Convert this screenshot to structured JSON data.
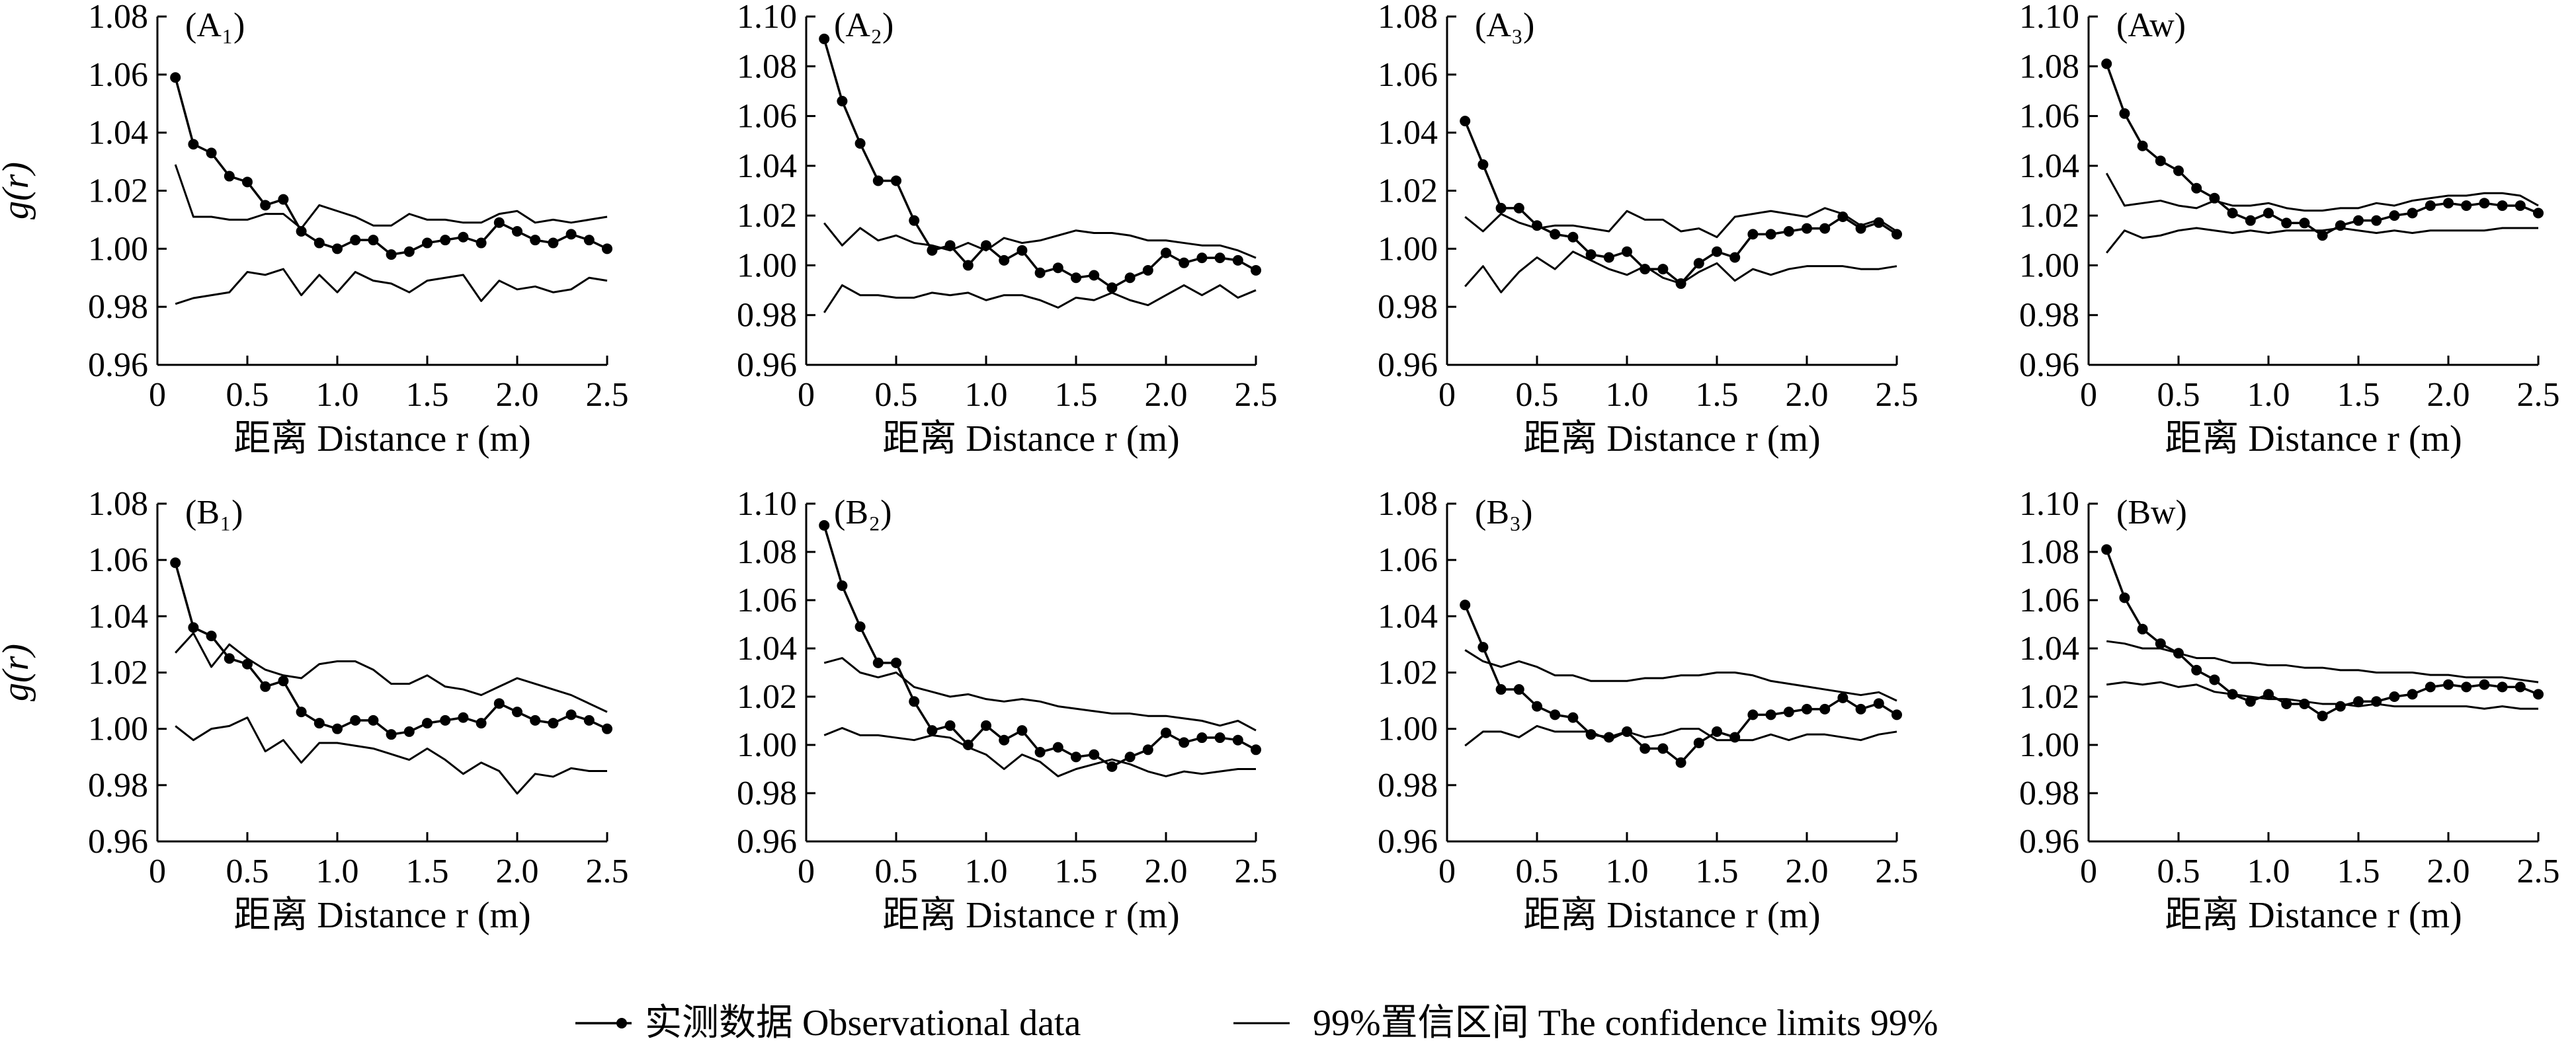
{
  "xlabel": "距离 Distance r (m)",
  "ylabel": "g(r)",
  "legend": {
    "observed": "实测数据 Observational data",
    "confidence": "99%置信区间 The confidence limits 99%"
  },
  "colors": {
    "line": "#000000",
    "background": "#ffffff"
  },
  "chart_data": [
    {
      "type": "line",
      "panel": "A1",
      "label": "(A₁)",
      "x": [
        0.1,
        0.2,
        0.3,
        0.4,
        0.5,
        0.6,
        0.7,
        0.8,
        0.9,
        1.0,
        1.1,
        1.2,
        1.3,
        1.4,
        1.5,
        1.6,
        1.7,
        1.8,
        1.9,
        2.0,
        2.1,
        2.2,
        2.3,
        2.4,
        2.5
      ],
      "xlim": [
        0,
        2.5
      ],
      "xticks": [
        0,
        0.5,
        1.0,
        1.5,
        2.0,
        2.5
      ],
      "ylim": [
        0.96,
        1.08
      ],
      "yticks": [
        0.96,
        0.98,
        1.0,
        1.02,
        1.04,
        1.06,
        1.08
      ],
      "series": [
        {
          "role": "observed",
          "values": [
            1.059,
            1.036,
            1.033,
            1.025,
            1.023,
            1.015,
            1.017,
            1.006,
            1.002,
            1.0,
            1.003,
            1.003,
            0.998,
            0.999,
            1.002,
            1.003,
            1.004,
            1.002,
            1.009,
            1.006,
            1.003,
            1.002,
            1.005,
            1.003,
            1.0
          ]
        },
        {
          "role": "upper",
          "values": [
            1.029,
            1.011,
            1.011,
            1.01,
            1.01,
            1.012,
            1.012,
            1.007,
            1.015,
            1.013,
            1.011,
            1.008,
            1.008,
            1.012,
            1.01,
            1.01,
            1.009,
            1.009,
            1.012,
            1.013,
            1.009,
            1.01,
            1.009,
            1.01,
            1.011
          ]
        },
        {
          "role": "lower",
          "values": [
            0.981,
            0.983,
            0.984,
            0.985,
            0.992,
            0.991,
            0.993,
            0.984,
            0.991,
            0.985,
            0.992,
            0.989,
            0.988,
            0.985,
            0.989,
            0.99,
            0.991,
            0.982,
            0.989,
            0.986,
            0.987,
            0.985,
            0.986,
            0.99,
            0.989
          ]
        }
      ]
    },
    {
      "type": "line",
      "panel": "A2",
      "label": "(A₂)",
      "x": [
        0.1,
        0.2,
        0.3,
        0.4,
        0.5,
        0.6,
        0.7,
        0.8,
        0.9,
        1.0,
        1.1,
        1.2,
        1.3,
        1.4,
        1.5,
        1.6,
        1.7,
        1.8,
        1.9,
        2.0,
        2.1,
        2.2,
        2.3,
        2.4,
        2.5
      ],
      "xlim": [
        0,
        2.5
      ],
      "xticks": [
        0,
        0.5,
        1.0,
        1.5,
        2.0,
        2.5
      ],
      "ylim": [
        0.96,
        1.1
      ],
      "yticks": [
        0.96,
        0.98,
        1.0,
        1.02,
        1.04,
        1.06,
        1.08,
        1.1
      ],
      "series": [
        {
          "role": "observed",
          "values": [
            1.091,
            1.066,
            1.049,
            1.034,
            1.034,
            1.018,
            1.006,
            1.008,
            1.0,
            1.008,
            1.002,
            1.006,
            0.997,
            0.999,
            0.995,
            0.996,
            0.991,
            0.995,
            0.998,
            1.005,
            1.001,
            1.003,
            1.003,
            1.002,
            0.998
          ]
        },
        {
          "role": "upper",
          "values": [
            1.017,
            1.008,
            1.015,
            1.01,
            1.012,
            1.009,
            1.008,
            1.006,
            1.009,
            1.006,
            1.011,
            1.009,
            1.01,
            1.012,
            1.014,
            1.013,
            1.013,
            1.012,
            1.01,
            1.01,
            1.009,
            1.008,
            1.008,
            1.006,
            1.003
          ]
        },
        {
          "role": "lower",
          "values": [
            0.981,
            0.992,
            0.988,
            0.988,
            0.987,
            0.987,
            0.989,
            0.988,
            0.989,
            0.986,
            0.988,
            0.988,
            0.986,
            0.983,
            0.987,
            0.986,
            0.989,
            0.986,
            0.984,
            0.988,
            0.992,
            0.988,
            0.992,
            0.987,
            0.99
          ]
        }
      ]
    },
    {
      "type": "line",
      "panel": "A3",
      "label": "(A₃)",
      "x": [
        0.1,
        0.2,
        0.3,
        0.4,
        0.5,
        0.6,
        0.7,
        0.8,
        0.9,
        1.0,
        1.1,
        1.2,
        1.3,
        1.4,
        1.5,
        1.6,
        1.7,
        1.8,
        1.9,
        2.0,
        2.1,
        2.2,
        2.3,
        2.4,
        2.5
      ],
      "xlim": [
        0,
        2.5
      ],
      "xticks": [
        0,
        0.5,
        1.0,
        1.5,
        2.0,
        2.5
      ],
      "ylim": [
        0.96,
        1.08
      ],
      "yticks": [
        0.96,
        0.98,
        1.0,
        1.02,
        1.04,
        1.06,
        1.08
      ],
      "series": [
        {
          "role": "observed",
          "values": [
            1.044,
            1.029,
            1.014,
            1.014,
            1.008,
            1.005,
            1.004,
            0.998,
            0.997,
            0.999,
            0.993,
            0.993,
            0.988,
            0.995,
            0.999,
            0.997,
            1.005,
            1.005,
            1.006,
            1.007,
            1.007,
            1.011,
            1.007,
            1.009,
            1.005
          ]
        },
        {
          "role": "upper",
          "values": [
            1.011,
            1.006,
            1.012,
            1.009,
            1.007,
            1.008,
            1.008,
            1.007,
            1.006,
            1.013,
            1.01,
            1.01,
            1.006,
            1.007,
            1.004,
            1.011,
            1.012,
            1.013,
            1.012,
            1.011,
            1.014,
            1.012,
            1.008,
            1.01,
            1.006
          ]
        },
        {
          "role": "lower",
          "values": [
            0.987,
            0.994,
            0.985,
            0.992,
            0.997,
            0.993,
            0.999,
            0.996,
            0.993,
            0.991,
            0.994,
            0.99,
            0.988,
            0.992,
            0.995,
            0.989,
            0.993,
            0.991,
            0.993,
            0.994,
            0.994,
            0.994,
            0.993,
            0.993,
            0.994
          ]
        }
      ]
    },
    {
      "type": "line",
      "panel": "Aw",
      "label": "(Aw)",
      "x": [
        0.1,
        0.2,
        0.3,
        0.4,
        0.5,
        0.6,
        0.7,
        0.8,
        0.9,
        1.0,
        1.1,
        1.2,
        1.3,
        1.4,
        1.5,
        1.6,
        1.7,
        1.8,
        1.9,
        2.0,
        2.1,
        2.2,
        2.3,
        2.4,
        2.5
      ],
      "xlim": [
        0,
        2.5
      ],
      "xticks": [
        0,
        0.5,
        1.0,
        1.5,
        2.0,
        2.5
      ],
      "ylim": [
        0.96,
        1.1
      ],
      "yticks": [
        0.96,
        0.98,
        1.0,
        1.02,
        1.04,
        1.06,
        1.08,
        1.1
      ],
      "series": [
        {
          "role": "observed",
          "values": [
            1.081,
            1.061,
            1.048,
            1.042,
            1.038,
            1.031,
            1.027,
            1.021,
            1.018,
            1.021,
            1.017,
            1.017,
            1.012,
            1.016,
            1.018,
            1.018,
            1.02,
            1.021,
            1.024,
            1.025,
            1.024,
            1.025,
            1.024,
            1.024,
            1.021
          ]
        },
        {
          "role": "upper",
          "values": [
            1.037,
            1.024,
            1.025,
            1.026,
            1.024,
            1.023,
            1.026,
            1.024,
            1.024,
            1.025,
            1.023,
            1.022,
            1.022,
            1.023,
            1.023,
            1.025,
            1.024,
            1.026,
            1.027,
            1.028,
            1.028,
            1.029,
            1.029,
            1.028,
            1.024
          ]
        },
        {
          "role": "lower",
          "values": [
            1.005,
            1.014,
            1.011,
            1.012,
            1.014,
            1.015,
            1.014,
            1.013,
            1.014,
            1.013,
            1.014,
            1.014,
            1.014,
            1.015,
            1.014,
            1.013,
            1.014,
            1.013,
            1.014,
            1.014,
            1.014,
            1.014,
            1.015,
            1.015,
            1.015
          ]
        }
      ]
    },
    {
      "type": "line",
      "panel": "B1",
      "label": "(B₁)",
      "x": [
        0.1,
        0.2,
        0.3,
        0.4,
        0.5,
        0.6,
        0.7,
        0.8,
        0.9,
        1.0,
        1.1,
        1.2,
        1.3,
        1.4,
        1.5,
        1.6,
        1.7,
        1.8,
        1.9,
        2.0,
        2.1,
        2.2,
        2.3,
        2.4,
        2.5
      ],
      "xlim": [
        0,
        2.5
      ],
      "xticks": [
        0,
        0.5,
        1.0,
        1.5,
        2.0,
        2.5
      ],
      "ylim": [
        0.96,
        1.08
      ],
      "yticks": [
        0.96,
        0.98,
        1.0,
        1.02,
        1.04,
        1.06,
        1.08
      ],
      "series": [
        {
          "role": "observed",
          "values": [
            1.059,
            1.036,
            1.033,
            1.025,
            1.023,
            1.015,
            1.017,
            1.006,
            1.002,
            1.0,
            1.003,
            1.003,
            0.998,
            0.999,
            1.002,
            1.003,
            1.004,
            1.002,
            1.009,
            1.006,
            1.003,
            1.002,
            1.005,
            1.003,
            1.0
          ]
        },
        {
          "role": "upper",
          "values": [
            1.027,
            1.034,
            1.022,
            1.03,
            1.025,
            1.021,
            1.019,
            1.018,
            1.023,
            1.024,
            1.024,
            1.021,
            1.016,
            1.016,
            1.019,
            1.015,
            1.014,
            1.012,
            1.015,
            1.018,
            1.016,
            1.014,
            1.012,
            1.009,
            1.006
          ]
        },
        {
          "role": "lower",
          "values": [
            1.001,
            0.996,
            1.0,
            1.001,
            1.004,
            0.992,
            0.996,
            0.988,
            0.995,
            0.995,
            0.994,
            0.993,
            0.991,
            0.989,
            0.993,
            0.989,
            0.984,
            0.988,
            0.985,
            0.977,
            0.984,
            0.983,
            0.986,
            0.985,
            0.985
          ]
        }
      ]
    },
    {
      "type": "line",
      "panel": "B2",
      "label": "(B₂)",
      "x": [
        0.1,
        0.2,
        0.3,
        0.4,
        0.5,
        0.6,
        0.7,
        0.8,
        0.9,
        1.0,
        1.1,
        1.2,
        1.3,
        1.4,
        1.5,
        1.6,
        1.7,
        1.8,
        1.9,
        2.0,
        2.1,
        2.2,
        2.3,
        2.4,
        2.5
      ],
      "xlim": [
        0,
        2.5
      ],
      "xticks": [
        0,
        0.5,
        1.0,
        1.5,
        2.0,
        2.5
      ],
      "ylim": [
        0.96,
        1.1
      ],
      "yticks": [
        0.96,
        0.98,
        1.0,
        1.02,
        1.04,
        1.06,
        1.08,
        1.1
      ],
      "series": [
        {
          "role": "observed",
          "values": [
            1.091,
            1.066,
            1.049,
            1.034,
            1.034,
            1.018,
            1.006,
            1.008,
            1.0,
            1.008,
            1.002,
            1.006,
            0.997,
            0.999,
            0.995,
            0.996,
            0.991,
            0.995,
            0.998,
            1.005,
            1.001,
            1.003,
            1.003,
            1.002,
            0.998
          ]
        },
        {
          "role": "upper",
          "values": [
            1.034,
            1.036,
            1.03,
            1.028,
            1.03,
            1.024,
            1.022,
            1.02,
            1.021,
            1.019,
            1.018,
            1.019,
            1.018,
            1.016,
            1.015,
            1.014,
            1.013,
            1.013,
            1.012,
            1.012,
            1.011,
            1.01,
            1.008,
            1.01,
            1.006
          ]
        },
        {
          "role": "lower",
          "values": [
            1.004,
            1.007,
            1.004,
            1.004,
            1.003,
            1.002,
            1.004,
            1.003,
            0.999,
            0.996,
            0.99,
            0.996,
            0.993,
            0.987,
            0.99,
            0.992,
            0.994,
            0.992,
            0.989,
            0.987,
            0.989,
            0.988,
            0.989,
            0.99,
            0.99
          ]
        }
      ]
    },
    {
      "type": "line",
      "panel": "B3",
      "label": "(B₃)",
      "x": [
        0.1,
        0.2,
        0.3,
        0.4,
        0.5,
        0.6,
        0.7,
        0.8,
        0.9,
        1.0,
        1.1,
        1.2,
        1.3,
        1.4,
        1.5,
        1.6,
        1.7,
        1.8,
        1.9,
        2.0,
        2.1,
        2.2,
        2.3,
        2.4,
        2.5
      ],
      "xlim": [
        0,
        2.5
      ],
      "xticks": [
        0,
        0.5,
        1.0,
        1.5,
        2.0,
        2.5
      ],
      "ylim": [
        0.96,
        1.08
      ],
      "yticks": [
        0.96,
        0.98,
        1.0,
        1.02,
        1.04,
        1.06,
        1.08
      ],
      "series": [
        {
          "role": "observed",
          "values": [
            1.044,
            1.029,
            1.014,
            1.014,
            1.008,
            1.005,
            1.004,
            0.998,
            0.997,
            0.999,
            0.993,
            0.993,
            0.988,
            0.995,
            0.999,
            0.997,
            1.005,
            1.005,
            1.006,
            1.007,
            1.007,
            1.011,
            1.007,
            1.009,
            1.005
          ]
        },
        {
          "role": "upper",
          "values": [
            1.028,
            1.024,
            1.022,
            1.024,
            1.022,
            1.019,
            1.019,
            1.017,
            1.017,
            1.017,
            1.018,
            1.018,
            1.019,
            1.019,
            1.02,
            1.02,
            1.019,
            1.017,
            1.016,
            1.015,
            1.014,
            1.013,
            1.012,
            1.013,
            1.01
          ]
        },
        {
          "role": "lower",
          "values": [
            0.994,
            0.999,
            0.999,
            0.997,
            1.001,
            0.999,
            0.999,
            0.999,
            0.996,
            0.999,
            0.997,
            0.998,
            1.0,
            1.0,
            0.996,
            0.996,
            0.996,
            0.998,
            0.996,
            0.998,
            0.998,
            0.997,
            0.996,
            0.998,
            0.999
          ]
        }
      ]
    },
    {
      "type": "line",
      "panel": "Bw",
      "label": "(Bw)",
      "x": [
        0.1,
        0.2,
        0.3,
        0.4,
        0.5,
        0.6,
        0.7,
        0.8,
        0.9,
        1.0,
        1.1,
        1.2,
        1.3,
        1.4,
        1.5,
        1.6,
        1.7,
        1.8,
        1.9,
        2.0,
        2.1,
        2.2,
        2.3,
        2.4,
        2.5
      ],
      "xlim": [
        0,
        2.5
      ],
      "xticks": [
        0,
        0.5,
        1.0,
        1.5,
        2.0,
        2.5
      ],
      "ylim": [
        0.96,
        1.1
      ],
      "yticks": [
        0.96,
        0.98,
        1.0,
        1.02,
        1.04,
        1.06,
        1.08,
        1.1
      ],
      "series": [
        {
          "role": "observed",
          "values": [
            1.081,
            1.061,
            1.048,
            1.042,
            1.038,
            1.031,
            1.027,
            1.021,
            1.018,
            1.021,
            1.017,
            1.017,
            1.012,
            1.016,
            1.018,
            1.018,
            1.02,
            1.021,
            1.024,
            1.025,
            1.024,
            1.025,
            1.024,
            1.024,
            1.021
          ]
        },
        {
          "role": "upper",
          "values": [
            1.043,
            1.042,
            1.04,
            1.04,
            1.038,
            1.036,
            1.036,
            1.034,
            1.034,
            1.033,
            1.033,
            1.032,
            1.032,
            1.031,
            1.031,
            1.03,
            1.03,
            1.03,
            1.029,
            1.029,
            1.028,
            1.028,
            1.028,
            1.027,
            1.026
          ]
        },
        {
          "role": "lower",
          "values": [
            1.025,
            1.026,
            1.025,
            1.026,
            1.024,
            1.025,
            1.022,
            1.021,
            1.02,
            1.019,
            1.019,
            1.018,
            1.017,
            1.017,
            1.016,
            1.017,
            1.016,
            1.016,
            1.016,
            1.016,
            1.016,
            1.015,
            1.016,
            1.015,
            1.015
          ]
        }
      ]
    }
  ]
}
